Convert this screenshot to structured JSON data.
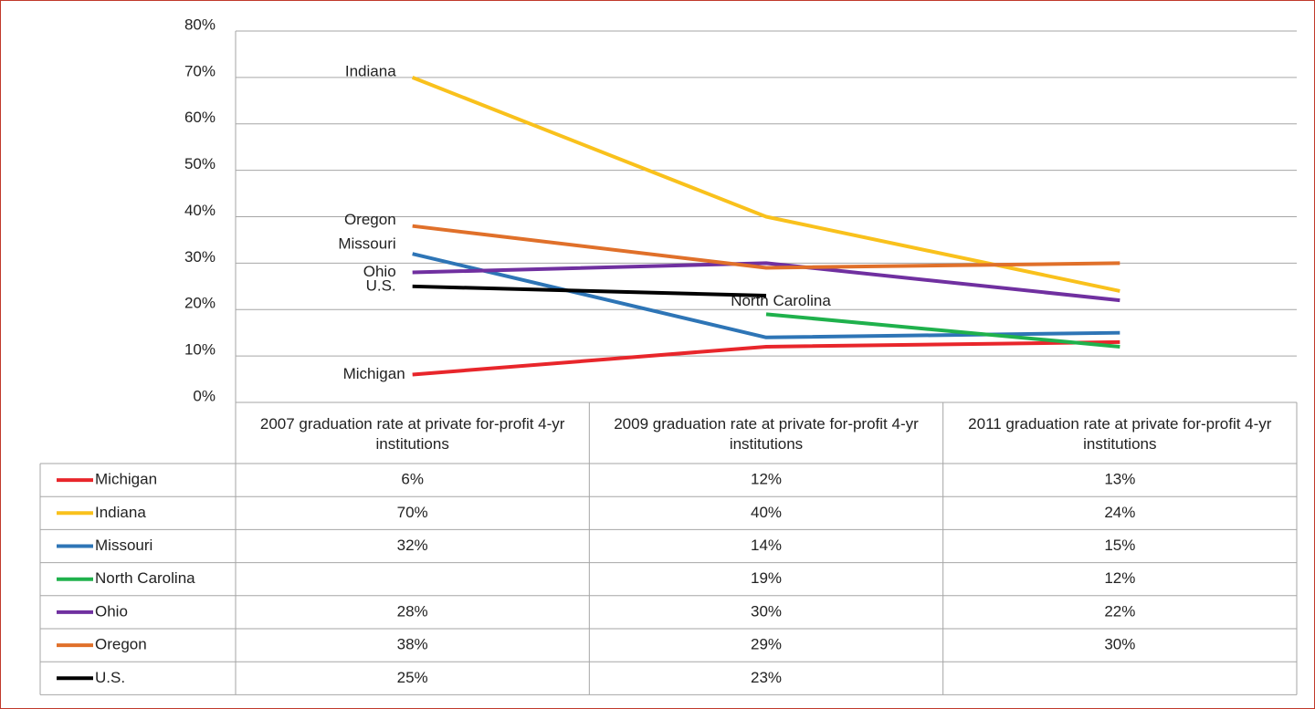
{
  "chart_data": {
    "type": "line",
    "categories": [
      "2007 graduation rate at private for-profit 4-yr institutions",
      "2009 graduation rate at private for-profit 4-yr institutions",
      "2011 graduation rate at private for-profit 4-yr institutions"
    ],
    "series": [
      {
        "name": "Michigan",
        "color": "#e8262b",
        "values": [
          6,
          12,
          13
        ],
        "value_labels": [
          "6%",
          "12%",
          "13%"
        ]
      },
      {
        "name": "Indiana",
        "color": "#f9c11c",
        "values": [
          70,
          40,
          24
        ],
        "value_labels": [
          "70%",
          "40%",
          "24%"
        ]
      },
      {
        "name": "Missouri",
        "color": "#2e75b6",
        "values": [
          32,
          14,
          15
        ],
        "value_labels": [
          "32%",
          "14%",
          "15%"
        ]
      },
      {
        "name": "North Carolina",
        "color": "#1fb14c",
        "values": [
          null,
          19,
          12
        ],
        "value_labels": [
          null,
          "19%",
          "12%"
        ]
      },
      {
        "name": "Ohio",
        "color": "#7030a0",
        "values": [
          28,
          30,
          22
        ],
        "value_labels": [
          "28%",
          "30%",
          "22%"
        ]
      },
      {
        "name": "Oregon",
        "color": "#e0702a",
        "values": [
          38,
          29,
          30
        ],
        "value_labels": [
          "38%",
          "29%",
          "30%"
        ]
      },
      {
        "name": "U.S.",
        "color": "#000000",
        "values": [
          25,
          23,
          null
        ],
        "value_labels": [
          "25%",
          "23%",
          null
        ]
      }
    ],
    "ylim": [
      0,
      80
    ],
    "yticks": [
      {
        "value": 0,
        "label": "0%"
      },
      {
        "value": 10,
        "label": "10%"
      },
      {
        "value": 20,
        "label": "20%"
      },
      {
        "value": 30,
        "label": "30%"
      },
      {
        "value": 40,
        "label": "40%"
      },
      {
        "value": 50,
        "label": "50%"
      },
      {
        "value": 60,
        "label": "60%"
      },
      {
        "value": 70,
        "label": "70%"
      },
      {
        "value": 80,
        "label": "80%"
      }
    ],
    "grid": true
  }
}
